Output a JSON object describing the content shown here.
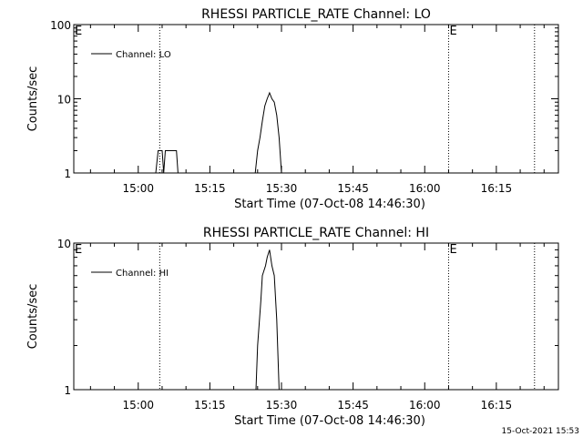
{
  "chart_data": [
    {
      "type": "line",
      "title": "RHESSI PARTICLE_RATE Channel: LO",
      "xlabel": "Start Time (07-Oct-08 14:46:30)",
      "ylabel": "Counts/sec",
      "yscale": "log",
      "xlim": [
        "14:46:30",
        "16:28:00"
      ],
      "ylim": [
        1,
        100
      ],
      "x_tick_labels": [
        "15:00",
        "15:15",
        "15:30",
        "15:45",
        "16:00",
        "16:15"
      ],
      "y_tick_labels": [
        "1",
        "10",
        "100"
      ],
      "legend": {
        "entries": [
          "Channel: LO"
        ],
        "placement": "top-left"
      },
      "markers": [
        {
          "label": "E",
          "time": "14:46:30"
        },
        {
          "label": "",
          "time": "15:04:30"
        },
        {
          "label": "E",
          "time": "16:05:00"
        },
        {
          "label": "",
          "time": "16:23:00"
        }
      ],
      "series": [
        {
          "name": "Channel: LO",
          "points": [
            [
              "15:03:40",
              1
            ],
            [
              "15:04:10",
              2
            ],
            [
              "15:05:00",
              2
            ],
            [
              "15:05:20",
              1
            ],
            [
              "15:05:40",
              2
            ],
            [
              "15:08:00",
              2
            ],
            [
              "15:08:20",
              1
            ]
          ]
        },
        {
          "name": "Channel: LO",
          "points": [
            [
              "15:24:30",
              1
            ],
            [
              "15:25:00",
              2
            ],
            [
              "15:25:30",
              3
            ],
            [
              "15:26:00",
              5
            ],
            [
              "15:26:30",
              8
            ],
            [
              "15:27:00",
              10
            ],
            [
              "15:27:30",
              12
            ],
            [
              "15:28:00",
              10
            ],
            [
              "15:28:30",
              9
            ],
            [
              "15:29:00",
              6
            ],
            [
              "15:29:30",
              3
            ],
            [
              "15:30:00",
              1
            ]
          ]
        }
      ]
    },
    {
      "type": "line",
      "title": "RHESSI PARTICLE_RATE Channel: HI",
      "xlabel": "Start Time (07-Oct-08 14:46:30)",
      "ylabel": "Counts/sec",
      "yscale": "log",
      "xlim": [
        "14:46:30",
        "16:28:00"
      ],
      "ylim": [
        1,
        10
      ],
      "x_tick_labels": [
        "15:00",
        "15:15",
        "15:30",
        "15:45",
        "16:00",
        "16:15"
      ],
      "y_tick_labels": [
        "1",
        "10"
      ],
      "legend": {
        "entries": [
          "Channel: HI"
        ],
        "placement": "top-left"
      },
      "markers": [
        {
          "label": "E",
          "time": "14:46:30"
        },
        {
          "label": "",
          "time": "15:04:30"
        },
        {
          "label": "E",
          "time": "16:05:00"
        },
        {
          "label": "",
          "time": "16:23:00"
        }
      ],
      "series": [
        {
          "name": "Channel: HI",
          "points": [
            [
              "15:24:40",
              1
            ],
            [
              "15:25:00",
              2
            ],
            [
              "15:25:40",
              4
            ],
            [
              "15:26:00",
              6
            ],
            [
              "15:26:40",
              7
            ],
            [
              "15:27:00",
              8
            ],
            [
              "15:27:30",
              9
            ],
            [
              "15:28:00",
              7
            ],
            [
              "15:28:30",
              6
            ],
            [
              "15:29:00",
              3
            ],
            [
              "15:29:30",
              1
            ]
          ]
        }
      ]
    }
  ],
  "footer": {
    "timestamp": "15-Oct-2021 15:53"
  }
}
